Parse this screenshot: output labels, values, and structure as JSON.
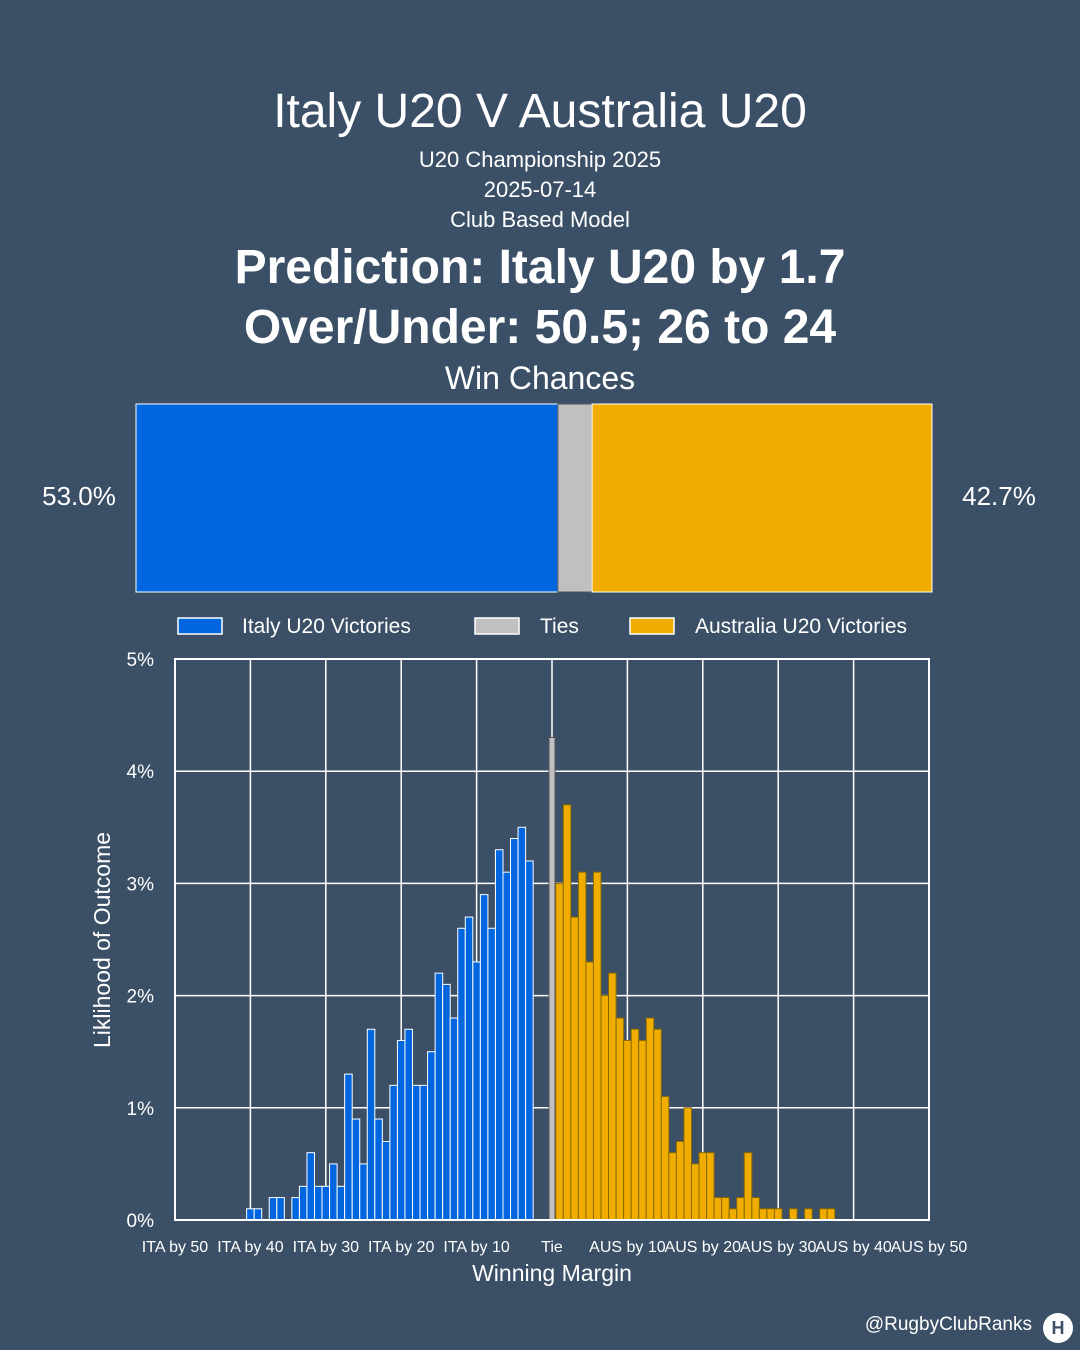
{
  "header": {
    "title": "Italy U20 V Australia U20",
    "competition": "U20 Championship 2025",
    "date": "2025-07-14",
    "model": "Club Based Model",
    "prediction": "Prediction: Italy U20 by 1.7",
    "over_under": "Over/Under: 50.5; 26 to 24"
  },
  "win_chances": {
    "title": "Win Chances",
    "home_pct_label": "53.0%",
    "away_pct_label": "42.7%",
    "home_pct": 53.0,
    "tie_pct": 4.3,
    "away_pct": 42.7,
    "colors": {
      "home": "#0066e0",
      "tie": "#c0c0c0",
      "away": "#f0ad00"
    }
  },
  "legend": {
    "home": "Italy U20 Victories",
    "tie": "Ties",
    "away": "Australia U20 Victories"
  },
  "chart_data": {
    "type": "bar",
    "xlabel": "Winning Margin",
    "ylabel": "Liklihood of Outcome",
    "ylim": [
      0,
      5
    ],
    "xlim": [
      -50,
      50
    ],
    "grid": true,
    "x_ticks": [
      {
        "x": -50,
        "label": "ITA by 50"
      },
      {
        "x": -40,
        "label": "ITA by 40"
      },
      {
        "x": -30,
        "label": "ITA by 30"
      },
      {
        "x": -20,
        "label": "ITA by 20"
      },
      {
        "x": -10,
        "label": "ITA by 10"
      },
      {
        "x": 0,
        "label": "Tie"
      },
      {
        "x": 10,
        "label": "AUS by 10"
      },
      {
        "x": 20,
        "label": "AUS by 20"
      },
      {
        "x": 30,
        "label": "AUS by 30"
      },
      {
        "x": 40,
        "label": "AUS by 40"
      },
      {
        "x": 50,
        "label": "AUS by 50"
      }
    ],
    "y_ticks": [
      {
        "y": 0,
        "label": "0%"
      },
      {
        "y": 1,
        "label": "1%"
      },
      {
        "y": 2,
        "label": "2%"
      },
      {
        "y": 3,
        "label": "3%"
      },
      {
        "y": 4,
        "label": "4%"
      },
      {
        "y": 5,
        "label": "5%"
      }
    ],
    "series": [
      {
        "name": "Italy U20 Victories",
        "color": "#0066e0",
        "x": [
          -40,
          -39,
          -38,
          -37,
          -36,
          -35,
          -34,
          -33,
          -32,
          -31,
          -30,
          -29,
          -28,
          -27,
          -26,
          -25,
          -24,
          -23,
          -22,
          -21,
          -20,
          -19,
          -18,
          -17,
          -16,
          -15,
          -14,
          -13,
          -12,
          -11,
          -10,
          -9,
          -8,
          -7,
          -6,
          -5,
          -4,
          -3,
          -2,
          -1
        ],
        "values": [
          0.1,
          0.1,
          0,
          0.2,
          0.2,
          0,
          0.2,
          0.3,
          0.6,
          0.3,
          0.3,
          0.5,
          0.3,
          1.3,
          0.9,
          0.5,
          1.7,
          0.9,
          0.7,
          1.2,
          1.6,
          1.7,
          1.2,
          1.2,
          1.5,
          2.2,
          2.1,
          1.8,
          2.6,
          2.7,
          2.3,
          2.9,
          2.6,
          3.3,
          3.1,
          3.4,
          3.5,
          3.2,
          0,
          0
        ]
      },
      {
        "name": "Ties",
        "color": "#c0c0c0",
        "x": [
          0
        ],
        "values": [
          4.3
        ]
      },
      {
        "name": "Australia U20 Victories",
        "color": "#f0ad00",
        "x": [
          1,
          2,
          3,
          4,
          5,
          6,
          7,
          8,
          9,
          10,
          11,
          12,
          13,
          14,
          15,
          16,
          17,
          18,
          19,
          20,
          21,
          22,
          23,
          24,
          25,
          26,
          27,
          28,
          29,
          30,
          31,
          32,
          33,
          34,
          35,
          36,
          37
        ],
        "values": [
          3.0,
          3.7,
          2.7,
          3.1,
          2.3,
          3.1,
          2.0,
          2.2,
          1.8,
          1.6,
          1.7,
          1.6,
          1.8,
          1.7,
          1.1,
          0.6,
          0.7,
          1.0,
          0.5,
          0.6,
          0.6,
          0.2,
          0.2,
          0.1,
          0.2,
          0.6,
          0.2,
          0.1,
          0.1,
          0.1,
          0,
          0.1,
          0,
          0.1,
          0,
          0.1,
          0.1
        ]
      }
    ]
  },
  "footer": {
    "handle": "@RugbyClubRanks",
    "logo_icon": "rugby-posts-icon"
  }
}
